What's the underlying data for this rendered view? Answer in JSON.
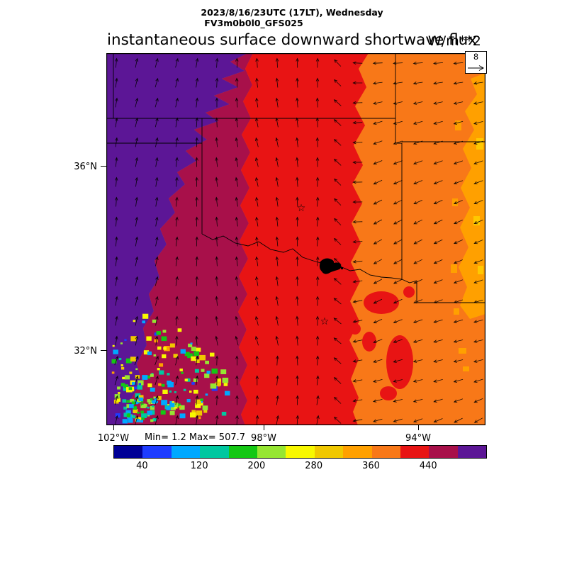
{
  "header": {
    "datetime_line": "2023/8/16/23UTC (17LT), Wednesday",
    "model_line": "FV3m0b0l0_GFS025",
    "title": "instantaneous surface downward shortwave flux",
    "units": "W/m**2"
  },
  "map": {
    "y_ticks": [
      "36°N",
      "32°N"
    ],
    "x_ticks": [
      "102°W",
      "98°W",
      "94°W"
    ],
    "stats": "Min= 1.2 Max= 507.7",
    "wind_reference_label": "8",
    "palette": {
      "purple": "#5c1696",
      "crimson": "#a8104a",
      "red": "#e81414",
      "orange": "#f87818",
      "amber": "#ffa000",
      "gold": "#ffc800"
    }
  },
  "chart_data": {
    "type": "heatmap",
    "title": "instantaneous surface downward shortwave flux",
    "units": "W/m**2",
    "valid_time": "2023/8/16/23UTC (17LT), Wednesday",
    "model": "FV3m0b0l0_GFS025",
    "min": 1.2,
    "max": 507.7,
    "colorbar": {
      "levels": [
        0,
        40,
        80,
        120,
        160,
        200,
        240,
        280,
        320,
        360,
        400,
        440,
        480,
        520
      ],
      "tick_labels": [
        "40",
        "120",
        "200",
        "280",
        "360",
        "440"
      ],
      "colors": [
        "#000096",
        "#1e3cff",
        "#00a8ff",
        "#00c8a0",
        "#14c814",
        "#96e632",
        "#f8f800",
        "#f0c800",
        "#ffa000",
        "#f87818",
        "#e81414",
        "#a8104a",
        "#5c1696"
      ],
      "position": "bottom-horizontal"
    },
    "x_axis": {
      "tick_labels": [
        "102°W",
        "98°W",
        "94°W"
      ],
      "range_deg_west": [
        102.2,
        92.2
      ]
    },
    "y_axis": {
      "tick_labels": [
        "36°N",
        "32°N"
      ],
      "range_deg_north": [
        30.4,
        38.5
      ]
    },
    "wind_vector_reference": 8,
    "field_summary": [
      {
        "region": "far west band (near/left of 102W)",
        "value_wm2": [
          480,
          508
        ],
        "color": "purple"
      },
      {
        "region": "west-central band",
        "value_wm2": [
          440,
          480
        ],
        "color": "crimson"
      },
      {
        "region": "central band (around 98W)",
        "value_wm2": [
          400,
          440
        ],
        "color": "red"
      },
      {
        "region": "eastern band (toward 94W)",
        "value_wm2": [
          360,
          400
        ],
        "color": "orange"
      },
      {
        "region": "far east edge strip",
        "value_wm2": [
          280,
          360
        ],
        "color": "amber"
      },
      {
        "region": "southwest speckled cloud area",
        "value_wm2": [
          40,
          280
        ],
        "color": "mixed blue/green/yellow"
      }
    ],
    "wind_field_summary": "arrows point northward over west/central region, rotating to westerly-southwestward flow over the eastern third",
    "overlays": [
      "state boundaries (OK/TX/KS/MO/AR region)",
      "Red River",
      "two open-star city markers",
      "small black lake polygon"
    ]
  }
}
